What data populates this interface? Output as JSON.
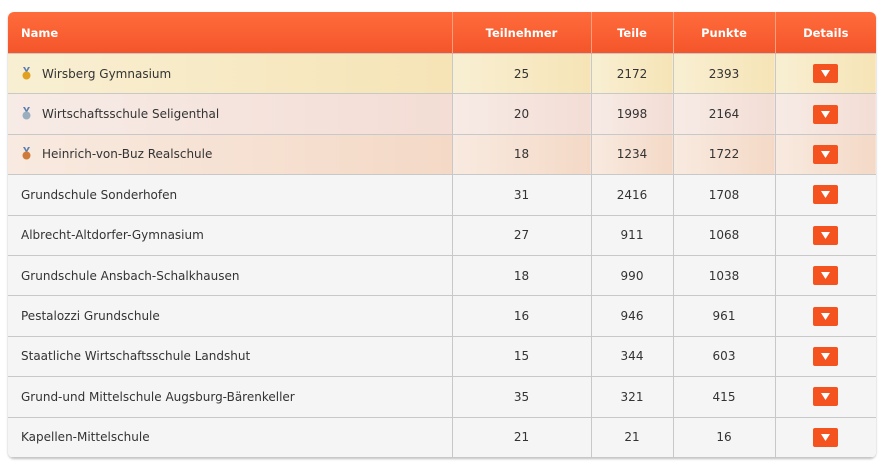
{
  "table": {
    "headers": [
      "Name",
      "Teilnehmer",
      "Teile",
      "Punkte",
      "Details"
    ],
    "rows": [
      [
        "Wirsberg Gymnasium",
        25,
        2172,
        2393
      ],
      [
        "Wirtschaftsschule Seligenthal",
        20,
        1998,
        2164
      ],
      [
        "Heinrich-von-Buz Realschule",
        18,
        1234,
        1722
      ],
      [
        "Grundschule Sonderhofen",
        31,
        2416,
        1708
      ],
      [
        "Albrecht-Altdorfer-Gymnasium",
        27,
        911,
        1068
      ],
      [
        "Grundschule Ansbach-Schalkhausen",
        18,
        990,
        1038
      ],
      [
        "Pestalozzi Grundschule",
        16,
        946,
        961
      ],
      [
        "Staatliche Wirtschaftsschule Landshut",
        15,
        344,
        603
      ],
      [
        "Grund-und Mittelschule Augsburg-Bärenkeller",
        35,
        321,
        415
      ],
      [
        "Kapellen-Mittelschule",
        21,
        21,
        16
      ]
    ]
  }
}
